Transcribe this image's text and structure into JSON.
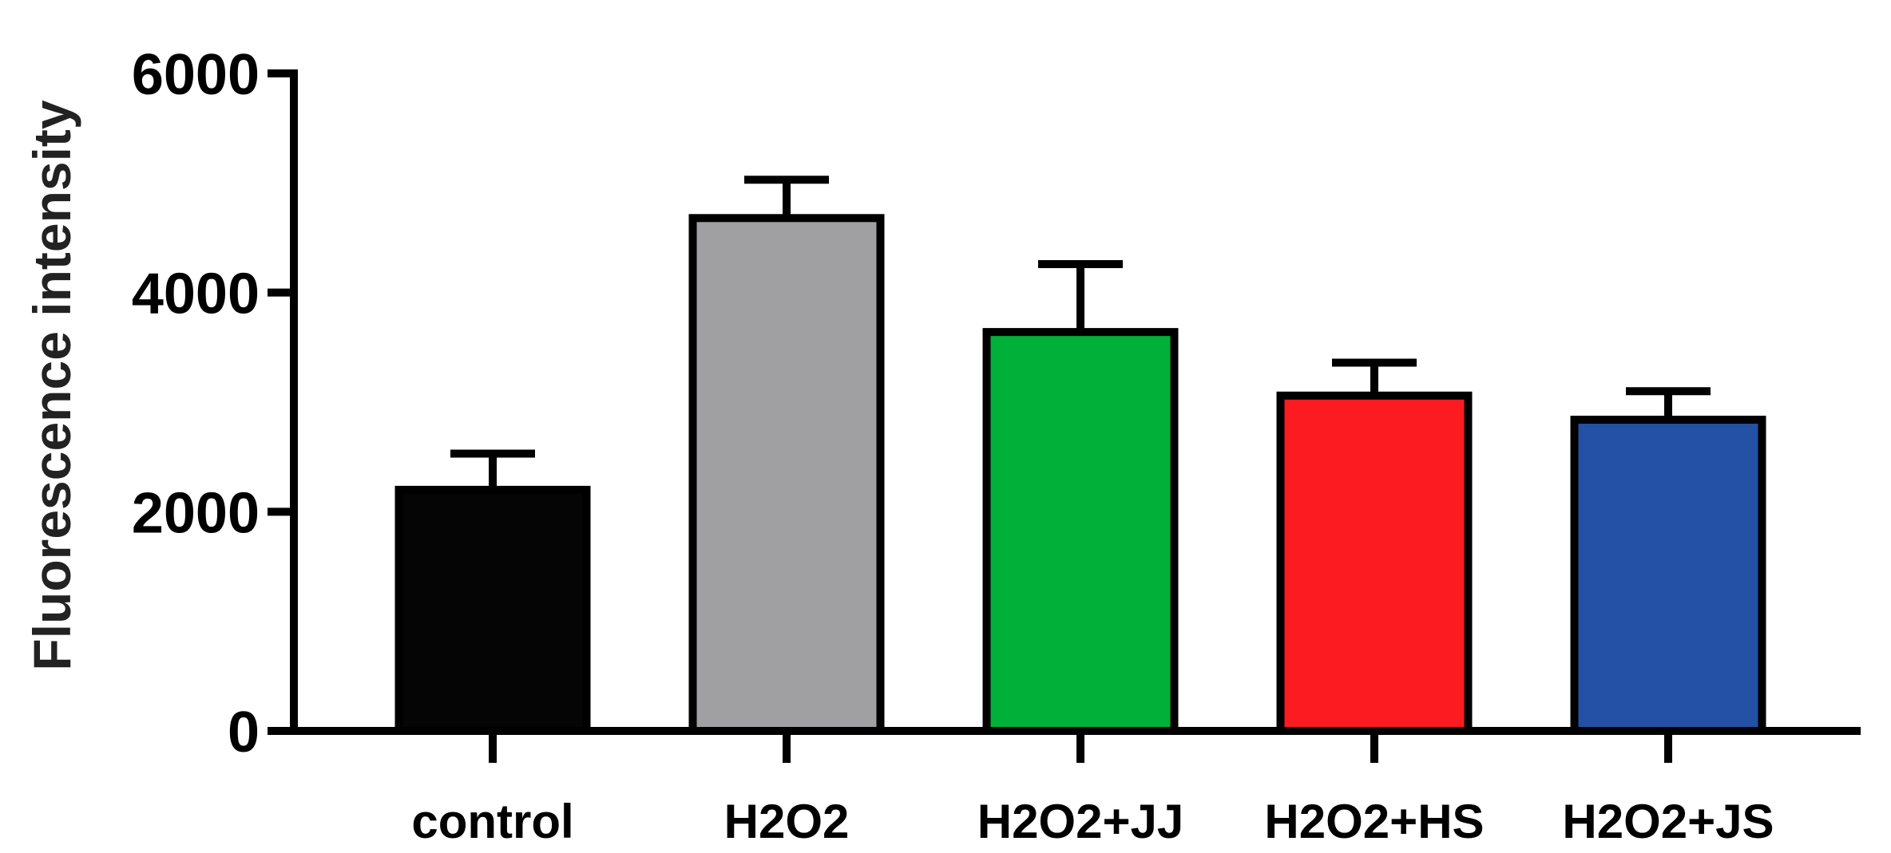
{
  "chart_data": {
    "type": "bar",
    "title": "",
    "xlabel": "",
    "ylabel": "Fluorescence intensity",
    "ylim": [
      0,
      6000
    ],
    "yticks": [
      0,
      2000,
      4000,
      6000
    ],
    "ytick_labels": [
      "0",
      "2000",
      "4000",
      "6000"
    ],
    "categories": [
      "control",
      "H2O2",
      "H2O2+JJ",
      "H2O2+HS",
      "H2O2+JS"
    ],
    "values": [
      2200,
      4680,
      3640,
      3060,
      2840
    ],
    "error_bars": [
      330,
      350,
      620,
      300,
      260
    ],
    "colors": [
      "#050505",
      "#a0a0a2",
      "#00b039",
      "#fc1b20",
      "#2450a5"
    ],
    "grid": false,
    "legend": "none"
  }
}
